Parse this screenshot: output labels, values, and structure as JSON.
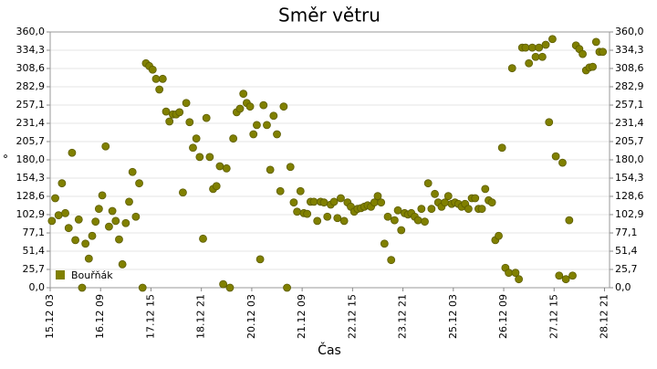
{
  "chart_data": {
    "type": "scatter",
    "title": "Směr větru",
    "xlabel": "Čas",
    "ylabel": "°",
    "series": [
      {
        "name": "Bouřňák",
        "color": "#808000",
        "x": [
          "15.12 04",
          "15.12 06",
          "15.12 08",
          "15.12 10",
          "15.12 12",
          "15.12 14",
          "15.12 16",
          "15.12 18",
          "15.12 20",
          "15.12 22",
          "16.12 00",
          "16.12 02",
          "16.12 04",
          "16.12 06",
          "16.12 08",
          "16.12 10",
          "16.12 12",
          "16.12 14",
          "16.12 16",
          "16.12 18",
          "16.12 20",
          "16.12 22",
          "17.12 00",
          "17.12 02",
          "17.12 04",
          "17.12 06",
          "17.12 08",
          "17.12 10",
          "17.12 12",
          "17.12 14",
          "17.12 16",
          "17.12 18",
          "17.12 20",
          "17.12 22",
          "18.12 00",
          "18.12 02",
          "18.12 04",
          "18.12 06",
          "18.12 08",
          "18.12 10",
          "18.12 12",
          "18.12 14",
          "18.12 16",
          "18.12 18",
          "18.12 20",
          "18.12 22",
          "19.12 00",
          "19.12 02",
          "19.12 04",
          "19.12 06",
          "19.12 08",
          "19.12 10",
          "19.12 12",
          "19.12 14",
          "19.12 16",
          "19.12 18",
          "19.12 20",
          "19.12 22",
          "20.12 00",
          "20.12 02",
          "20.12 04",
          "20.12 06",
          "20.12 08",
          "20.12 10",
          "20.12 12",
          "20.12 14",
          "20.12 16",
          "20.12 18",
          "20.12 20",
          "20.12 22",
          "21.12 00",
          "21.12 02",
          "21.12 04",
          "21.12 06",
          "21.12 08",
          "21.12 10",
          "21.12 12",
          "21.12 14",
          "21.12 16",
          "21.12 18",
          "21.12 20",
          "21.12 22",
          "22.12 00",
          "22.12 02",
          "22.12 04",
          "22.12 06",
          "22.12 08",
          "22.12 10",
          "22.12 12",
          "22.12 14",
          "22.12 16",
          "22.12 18",
          "22.12 20",
          "22.12 22",
          "23.12 00",
          "23.12 02",
          "23.12 04",
          "23.12 06",
          "23.12 08",
          "23.12 10",
          "23.12 12",
          "23.12 14",
          "23.12 16",
          "23.12 18",
          "23.12 20",
          "23.12 22",
          "24.12 00",
          "24.12 02",
          "24.12 04",
          "24.12 06",
          "24.12 08",
          "24.12 10",
          "24.12 12",
          "24.12 14",
          "24.12 16",
          "24.12 18",
          "24.12 20",
          "24.12 22",
          "25.12 00",
          "25.12 02",
          "25.12 04",
          "25.12 06",
          "25.12 08",
          "25.12 10",
          "25.12 12",
          "25.12 14",
          "25.12 16",
          "25.12 18",
          "25.12 20",
          "25.12 22",
          "26.12 00",
          "26.12 02",
          "26.12 04",
          "26.12 06",
          "26.12 08",
          "26.12 10",
          "26.12 12",
          "26.12 14",
          "26.12 16",
          "26.12 18",
          "26.12 20",
          "26.12 22",
          "27.12 00",
          "27.12 02",
          "27.12 04",
          "27.12 06",
          "27.12 08",
          "27.12 10",
          "27.12 12",
          "27.12 14",
          "27.12 16",
          "27.12 18",
          "27.12 20",
          "27.12 22",
          "28.12 00",
          "28.12 02",
          "28.12 04",
          "28.12 06",
          "28.12 08",
          "28.12 10",
          "28.12 12",
          "28.12 14",
          "28.12 16",
          "28.12 18",
          "28.12 20"
        ],
        "values": [
          94,
          126,
          102,
          147,
          105,
          84,
          190,
          67,
          96,
          0,
          62,
          41,
          73,
          93,
          111,
          130,
          199,
          86,
          108,
          94,
          68,
          33,
          91,
          121,
          163,
          100,
          147,
          0,
          316,
          312,
          307,
          294,
          279,
          294,
          248,
          234,
          244,
          244,
          247,
          134,
          260,
          233,
          197,
          210,
          184,
          69,
          239,
          184,
          139,
          143,
          171,
          5,
          168,
          0,
          210,
          247,
          252,
          273,
          260,
          255,
          216,
          229,
          40,
          257,
          229,
          166,
          242,
          216,
          136,
          255,
          0,
          170,
          120,
          107,
          136,
          105,
          104,
          121,
          121,
          94,
          121,
          120,
          100,
          117,
          121,
          98,
          126,
          94,
          120,
          114,
          107,
          111,
          112,
          114,
          116,
          114,
          120,
          129,
          120,
          62,
          100,
          39,
          95,
          109,
          81,
          105,
          103,
          105,
          100,
          95,
          111,
          93,
          147,
          111,
          132,
          120,
          114,
          120,
          129,
          118,
          120,
          118,
          114,
          118,
          111,
          126,
          126,
          111,
          111,
          139,
          123,
          120,
          67,
          73,
          197,
          28,
          21,
          309,
          21,
          12,
          338,
          338,
          316,
          338,
          325,
          338,
          325,
          342,
          233,
          350,
          185,
          17,
          176,
          12,
          95,
          17,
          341,
          336,
          329,
          306,
          310,
          311,
          346,
          332,
          332
        ]
      }
    ],
    "xlim": [
      "15.12 03",
      "29.12 00"
    ],
    "xticks": [
      "15.12 03",
      "16.12 09",
      "17.12 15",
      "18.12 21",
      "20.12 03",
      "21.12 09",
      "22.12 15",
      "23.12 21",
      "25.12 03",
      "26.12 09",
      "27.12 15",
      "28.12 21"
    ],
    "ylim": [
      0,
      360
    ],
    "yticks": [
      {
        "value": 0,
        "label": "0,0"
      },
      {
        "value": 25.7,
        "label": "25,7"
      },
      {
        "value": 51.4,
        "label": "51,4"
      },
      {
        "value": 77.1,
        "label": "77,1"
      },
      {
        "value": 102.9,
        "label": "102,9"
      },
      {
        "value": 128.6,
        "label": "128,6"
      },
      {
        "value": 154.3,
        "label": "154,3"
      },
      {
        "value": 180,
        "label": "180,0"
      },
      {
        "value": 205.7,
        "label": "205,7"
      },
      {
        "value": 231.4,
        "label": "231,4"
      },
      {
        "value": 257.1,
        "label": "257,1"
      },
      {
        "value": 282.9,
        "label": "282,9"
      },
      {
        "value": 308.6,
        "label": "308,6"
      },
      {
        "value": 334.3,
        "label": "334,3"
      },
      {
        "value": 360,
        "label": "360,0"
      }
    ],
    "grid": true,
    "legend": "lower left"
  }
}
